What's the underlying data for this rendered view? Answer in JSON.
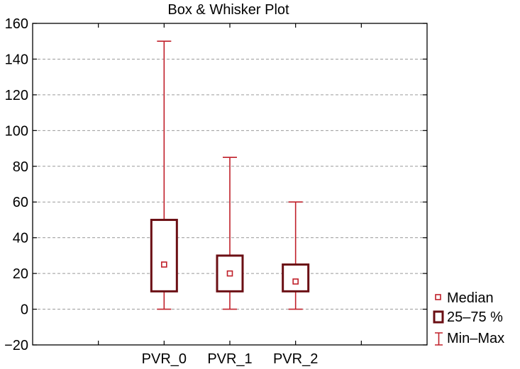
{
  "chart_data": {
    "type": "boxplot",
    "title": "Box & Whisker Plot",
    "xlabel": "",
    "ylabel": "",
    "ylim": [
      -20,
      160
    ],
    "yticks": [
      -20,
      0,
      20,
      40,
      60,
      80,
      100,
      120,
      140,
      160
    ],
    "grid": true,
    "legend_position": "right",
    "categories": [
      "PVR_0",
      "PVR_1",
      "PVR_2"
    ],
    "boxes": [
      {
        "category": "PVR_0",
        "min": 0,
        "q1": 10,
        "median": 25,
        "q3": 50,
        "max": 150
      },
      {
        "category": "PVR_1",
        "min": 0,
        "q1": 10,
        "median": 20,
        "q3": 30,
        "max": 85
      },
      {
        "category": "PVR_2",
        "min": 0,
        "q1": 10,
        "median": 15.5,
        "q3": 25,
        "max": 60
      }
    ],
    "legend": [
      {
        "label": "Median",
        "symbol": "small-square"
      },
      {
        "label": "25–75 %",
        "symbol": "box"
      },
      {
        "label": "Min–Max",
        "symbol": "whisker"
      }
    ],
    "colors": {
      "box": "#6b0f14",
      "whisker": "#c0202a",
      "median": "#c0202a",
      "grid": "#9a9a9a"
    }
  }
}
